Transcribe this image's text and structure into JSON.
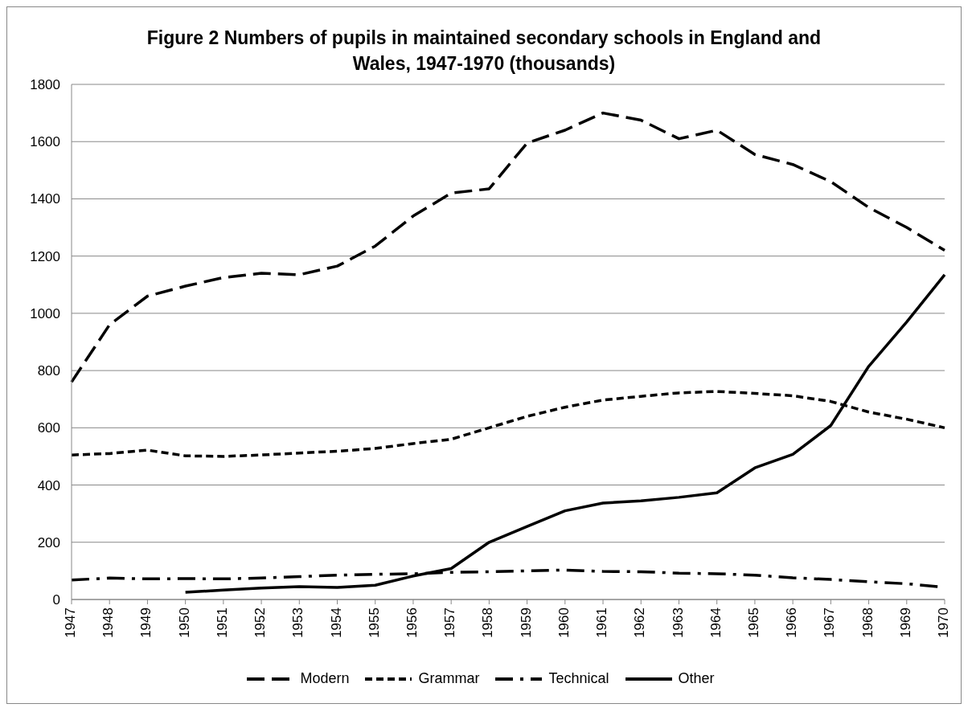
{
  "chart_data": {
    "type": "line",
    "title": "Figure 2 Numbers of pupils in maintained secondary schools in England and Wales, 1947-1970 (thousands)",
    "categories": [
      "1947",
      "1948",
      "1949",
      "1950",
      "1951",
      "1952",
      "1953",
      "1954",
      "1955",
      "1956",
      "1957",
      "1958",
      "1959",
      "1960",
      "1961",
      "1962",
      "1963",
      "1964",
      "1965",
      "1966",
      "1967",
      "1968",
      "1969",
      "1970"
    ],
    "series": [
      {
        "name": "Modern",
        "color": "#000000",
        "line_style": "long_dashed",
        "values": [
          760,
          960,
          1060,
          1095,
          1125,
          1140,
          1135,
          1165,
          1235,
          1340,
          1420,
          1435,
          1595,
          1640,
          1700,
          1675,
          1610,
          1640,
          1555,
          1520,
          1460,
          1370,
          1300,
          1220
        ]
      },
      {
        "name": "Grammar",
        "color": "#000000",
        "line_style": "dashed",
        "values": [
          505,
          510,
          522,
          502,
          500,
          505,
          512,
          518,
          528,
          545,
          560,
          600,
          640,
          672,
          697,
          710,
          722,
          727,
          720,
          712,
          692,
          655,
          630,
          600
        ]
      },
      {
        "name": "Technical",
        "color": "#000000",
        "line_style": "dashdot",
        "values": [
          68,
          75,
          72,
          73,
          72,
          75,
          80,
          85,
          88,
          90,
          95,
          97,
          100,
          103,
          98,
          97,
          92,
          90,
          85,
          76,
          70,
          62,
          55,
          43
        ]
      },
      {
        "name": "Other",
        "color": "#000000",
        "line_style": "solid",
        "values": [
          null,
          null,
          null,
          25,
          33,
          40,
          45,
          42,
          50,
          82,
          108,
          200,
          255,
          310,
          337,
          345,
          357,
          373,
          460,
          507,
          608,
          815,
          970,
          1135
        ]
      }
    ],
    "ylim": [
      0,
      1800
    ],
    "yticks": [
      0,
      200,
      400,
      600,
      800,
      1000,
      1200,
      1400,
      1600,
      1800
    ],
    "grid": "y",
    "legend": "bottom",
    "marker": "none"
  }
}
